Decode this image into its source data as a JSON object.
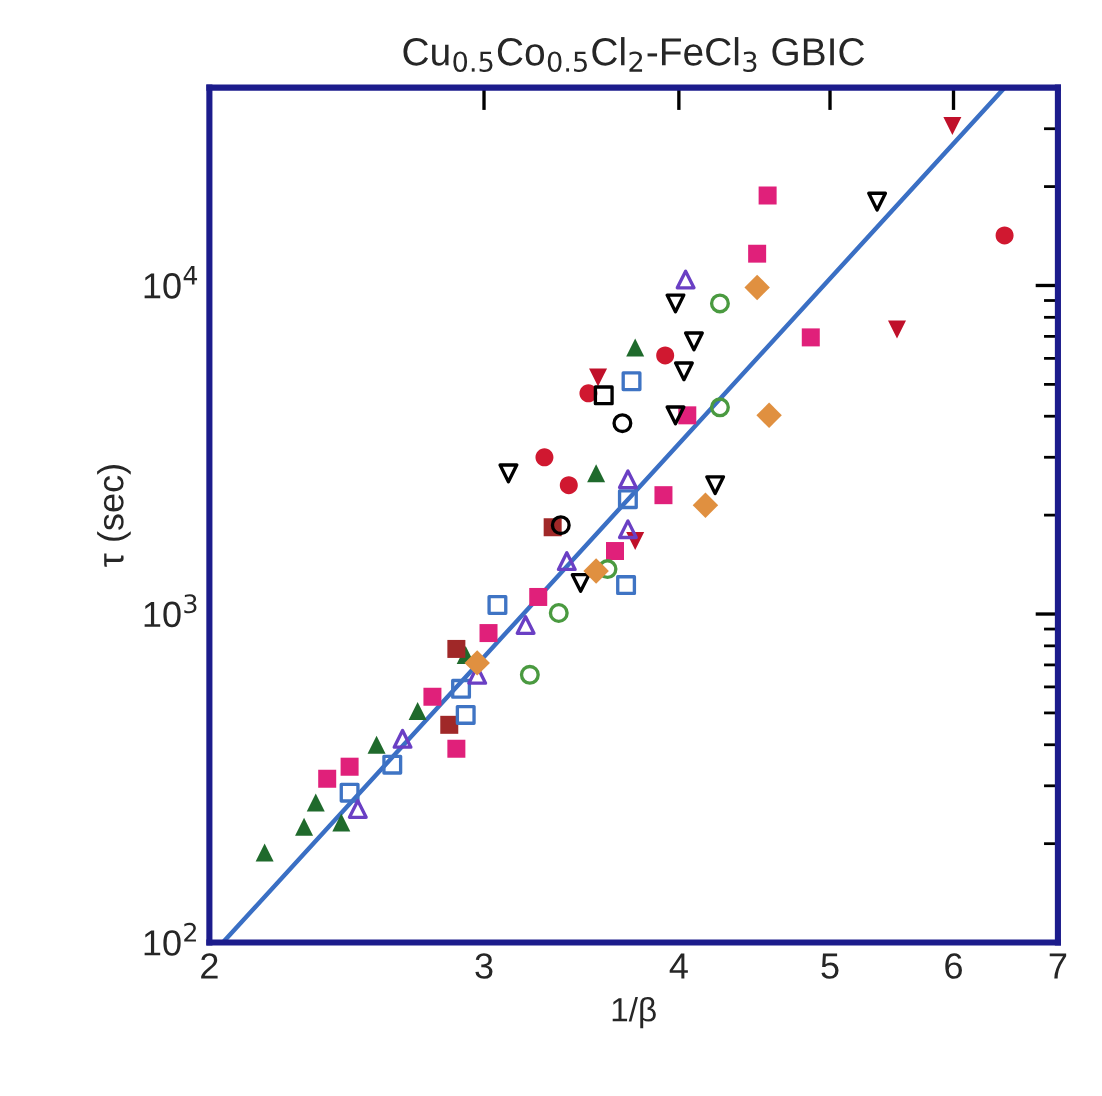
{
  "chart_data": {
    "type": "scatter",
    "title": "Cu$_{0.5}$Co$_{0.5}$Cl$_{2}$-FeCl$_{3}$ GBIC",
    "xlabel": "1/β",
    "ylabel": "τ (sec)",
    "log": "xy",
    "grid": false,
    "xlim": [
      2,
      7
    ],
    "xticks": [
      2,
      3,
      4,
      5,
      6,
      7
    ],
    "ylim": [
      100,
      40000
    ],
    "yticks": [
      {
        "value": 100,
        "label": "10$^{2}$"
      },
      {
        "value": 1000,
        "label": "10$^{3}$"
      },
      {
        "value": 10000,
        "label": "10$^{4}$"
      }
    ],
    "series": [
      {
        "type": "line",
        "color": "#3a6fc4",
        "marker": "none",
        "line_style": "solid",
        "x": [
          2.04,
          6.47
        ],
        "values": [
          100,
          40000
        ]
      },
      {
        "color": "#1f6a2c",
        "marker": "triangle",
        "x": [
          2.17,
          2.3,
          2.34,
          2.43,
          2.56,
          2.72,
          2.92,
          3.54,
          3.75
        ],
        "values": [
          188,
          225,
          267,
          232,
          400,
          507,
          750,
          2680,
          6480
        ]
      },
      {
        "color": "#e0207a",
        "marker": "square",
        "x": [
          2.38,
          2.46,
          2.78,
          2.88,
          3.02,
          3.25,
          3.64,
          3.91,
          4.05,
          4.56,
          4.49,
          4.86
        ],
        "values": [
          315,
          343,
          560,
          389,
          875,
          1127,
          1555,
          2300,
          4025,
          18800,
          12500,
          6950
        ]
      },
      {
        "color": "#d01830",
        "marker": "circle",
        "x": [
          3.28,
          3.4,
          3.5,
          3.92,
          6.47
        ],
        "values": [
          3000,
          2467,
          4695,
          6125,
          14200
        ]
      },
      {
        "color": "#c0102a",
        "marker": "triangle_down",
        "x": [
          3.55,
          5.99,
          5.52,
          3.75
        ],
        "values": [
          5250,
          30600,
          7350,
          1667
        ]
      },
      {
        "color": "#a02828",
        "marker": "square",
        "x": [
          3.32,
          2.88,
          2.85
        ],
        "values": [
          1837,
          783,
          460
        ]
      },
      {
        "color": "#000000",
        "marker": "triangle_down-open",
        "x": [
          3.11,
          5.36,
          3.98,
          4.09,
          4.03,
          3.98,
          4.22,
          3.46
        ],
        "values": [
          2680,
          18000,
          8820,
          6760,
          5480,
          4025,
          2467,
          1243
        ]
      },
      {
        "color": "#000000",
        "marker": "circle-open",
        "x": [
          3.68,
          3.36
        ],
        "values": [
          3810,
          1864
        ]
      },
      {
        "color": "#000000",
        "marker": "square-open",
        "x": [
          3.58
        ],
        "values": [
          4630
        ]
      },
      {
        "color": "#3f74c4",
        "marker": "square-open",
        "x": [
          2.46,
          2.62,
          2.9,
          2.92,
          3.06,
          3.7,
          3.73,
          3.71
        ],
        "values": [
          286,
          348,
          592,
          493,
          1065,
          1225,
          5110,
          2237
        ]
      },
      {
        "color": "#6a3fc4",
        "marker": "triangle-open",
        "x": [
          2.49,
          2.66,
          2.97,
          3.19,
          3.39,
          4.04,
          3.71,
          3.71
        ],
        "values": [
          255,
          417,
          653,
          926,
          1449,
          10430,
          1812,
          2572
        ]
      },
      {
        "color": "#4a9a40",
        "marker": "circle-open",
        "x": [
          3.21,
          3.35,
          3.6,
          4.25,
          4.25
        ],
        "values": [
          653,
          1007,
          1370,
          8820,
          4256
        ]
      },
      {
        "color": "#e09040",
        "marker": "diamond",
        "x": [
          4.49,
          4.57,
          4.16,
          3.54,
          2.97
        ],
        "values": [
          9860,
          4025,
          2144,
          1352,
          710
        ]
      }
    ]
  }
}
